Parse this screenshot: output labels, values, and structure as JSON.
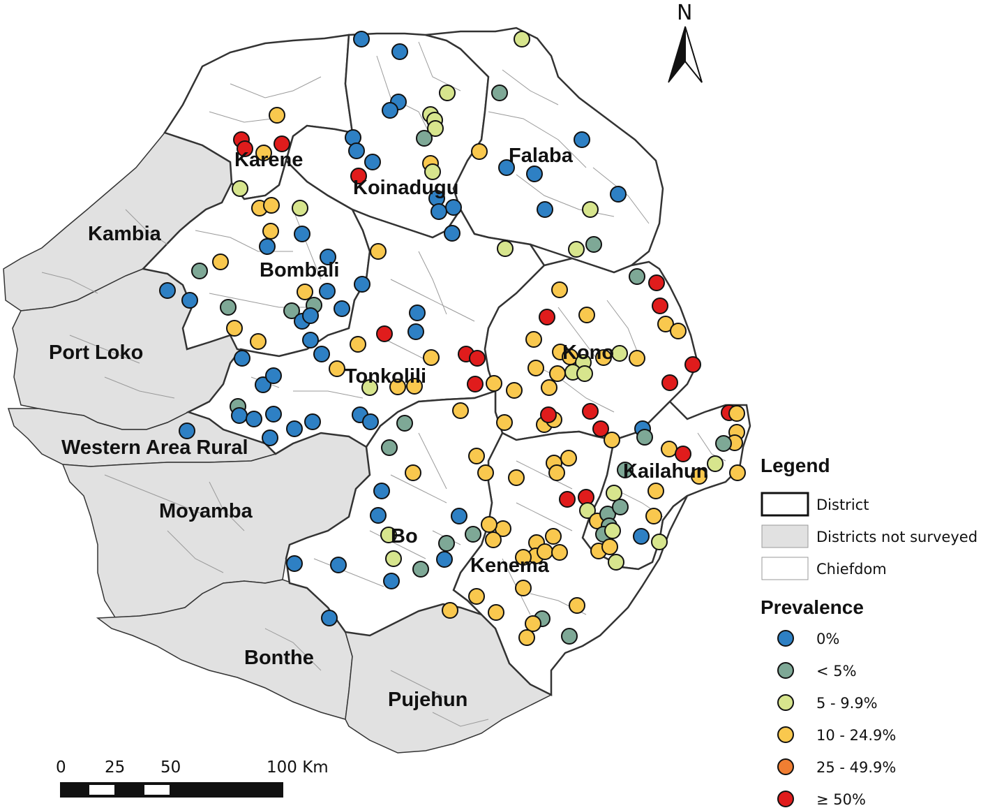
{
  "map": {
    "districts_surveyed": [
      "Karene",
      "Koinadugu",
      "Falaba",
      "Bombali",
      "Tonkolili",
      "Kono",
      "Kailahun",
      "Bo",
      "Kenema"
    ],
    "districts_not_surveyed": [
      "Kambia",
      "Port Loko",
      "Western Area Rural",
      "Moyamba",
      "Bonthe",
      "Pujehun"
    ],
    "labels": {
      "karene": "Karene",
      "koinadugu": "Koinadugu",
      "falaba": "Falaba",
      "kambia": "Kambia",
      "bombali": "Bombali",
      "port_loko": "Port Loko",
      "tonkolili": "Tonkolili",
      "kono": "Kono",
      "western_area_rural": "Western Area Rural",
      "moyamba": "Moyamba",
      "kailahun": "Kailahun",
      "bo": "Bo",
      "kenema": "Kenema",
      "bonthe": "Bonthe",
      "pujehun": "Pujehun"
    },
    "colors": {
      "surveyed_fill": "#ffffff",
      "not_surveyed_fill": "#e1e1e1",
      "boundary": "#333333",
      "chiefdom_line": "#9a9a9a"
    }
  },
  "north_arrow": {
    "label": "N"
  },
  "scale_bar": {
    "ticks": [
      "0",
      "25",
      "50",
      "100 Km"
    ]
  },
  "legend": {
    "title": "Legend",
    "items": [
      {
        "label": "District",
        "symbol": "district-box"
      },
      {
        "label": "Districts not surveyed",
        "symbol": "grey-box"
      },
      {
        "label": "Chiefdom",
        "symbol": "thin-box"
      }
    ],
    "prevalence_title": "Prevalence",
    "classes": [
      {
        "label": "0%",
        "color": "#2e80c4"
      },
      {
        "label": "< 5%",
        "color": "#7ea896"
      },
      {
        "label": "5 - 9.9%",
        "color": "#d7e58d"
      },
      {
        "label": "10 - 24.9%",
        "color": "#f9c84e"
      },
      {
        "label": "25 - 49.9%",
        "color": "#f07e32"
      },
      {
        "label": "≥ 50%",
        "color": "#e01c1c"
      }
    ]
  }
}
